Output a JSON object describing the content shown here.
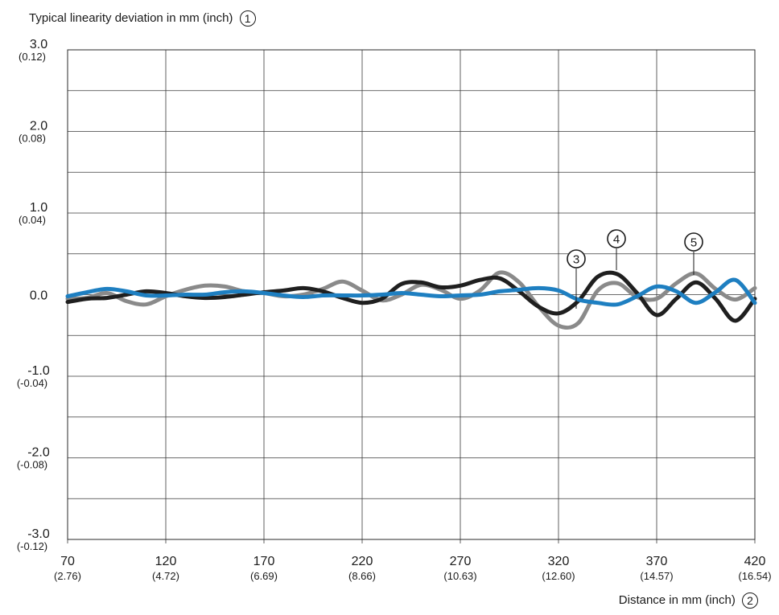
{
  "chart_data": {
    "type": "line",
    "ylabel": "Typical linearity deviation in mm (inch)",
    "ylabel_marker": "1",
    "xlabel": "Distance in mm (inch)",
    "xlabel_marker": "2",
    "xlim": [
      70,
      420
    ],
    "ylim": [
      -3.0,
      3.0
    ],
    "grid": true,
    "x_ticks": [
      {
        "value": 70,
        "mm": "70",
        "inch": "(2.76)"
      },
      {
        "value": 120,
        "mm": "120",
        "inch": "(4.72)"
      },
      {
        "value": 170,
        "mm": "170",
        "inch": "(6.69)"
      },
      {
        "value": 220,
        "mm": "220",
        "inch": "(8.66)"
      },
      {
        "value": 270,
        "mm": "270",
        "inch": "(10.63)"
      },
      {
        "value": 320,
        "mm": "320",
        "inch": "(12.60)"
      },
      {
        "value": 370,
        "mm": "370",
        "inch": "(14.57)"
      },
      {
        "value": 420,
        "mm": "420",
        "inch": "(16.54)"
      }
    ],
    "y_ticks": [
      {
        "value": 3.0,
        "mm": "3.0",
        "inch": "(0.12)"
      },
      {
        "value": 2.0,
        "mm": "2.0",
        "inch": "(0.08)"
      },
      {
        "value": 1.0,
        "mm": "1.0",
        "inch": "(0.04)"
      },
      {
        "value": 0.0,
        "mm": "0.0",
        "inch": ""
      },
      {
        "value": -1.0,
        "mm": "-1.0",
        "inch": "(-0.04)"
      },
      {
        "value": -2.0,
        "mm": "-2.0",
        "inch": "(-0.08)"
      },
      {
        "value": -3.0,
        "mm": "-3.0",
        "inch": "(-0.12)"
      }
    ],
    "series": [
      {
        "marker": "3",
        "color": "#8a8a8a",
        "x": [
          70,
          80,
          90,
          100,
          110,
          120,
          130,
          140,
          150,
          160,
          170,
          180,
          190,
          200,
          210,
          220,
          230,
          240,
          250,
          260,
          270,
          280,
          290,
          300,
          310,
          320,
          330,
          340,
          350,
          360,
          370,
          380,
          390,
          400,
          410,
          420
        ],
        "y": [
          -0.05,
          -0.04,
          0.02,
          -0.08,
          -0.12,
          -0.02,
          0.06,
          0.11,
          0.1,
          0.04,
          0.02,
          -0.02,
          0.0,
          0.07,
          0.16,
          0.05,
          -0.07,
          0.0,
          0.12,
          0.06,
          -0.05,
          0.05,
          0.27,
          0.15,
          -0.15,
          -0.38,
          -0.35,
          0.05,
          0.14,
          -0.03,
          -0.05,
          0.14,
          0.26,
          0.07,
          -0.06,
          0.08
        ]
      },
      {
        "marker": "4",
        "color": "#1f1f1f",
        "x": [
          70,
          80,
          90,
          100,
          110,
          120,
          130,
          140,
          150,
          160,
          170,
          180,
          190,
          200,
          210,
          220,
          230,
          240,
          250,
          260,
          270,
          280,
          290,
          300,
          310,
          320,
          330,
          340,
          350,
          360,
          370,
          380,
          390,
          400,
          410,
          420
        ],
        "y": [
          -0.09,
          -0.05,
          -0.04,
          0.0,
          0.04,
          0.02,
          -0.02,
          -0.04,
          -0.03,
          0.0,
          0.03,
          0.05,
          0.08,
          0.04,
          -0.04,
          -0.1,
          -0.05,
          0.13,
          0.15,
          0.09,
          0.11,
          0.18,
          0.2,
          0.04,
          -0.15,
          -0.23,
          -0.08,
          0.22,
          0.25,
          0.02,
          -0.25,
          -0.05,
          0.15,
          -0.05,
          -0.32,
          -0.05
        ]
      },
      {
        "marker": "5",
        "color": "#1e7fc1",
        "x": [
          70,
          80,
          90,
          100,
          110,
          120,
          130,
          140,
          150,
          160,
          170,
          180,
          190,
          200,
          210,
          220,
          230,
          240,
          250,
          260,
          270,
          280,
          290,
          300,
          310,
          320,
          330,
          340,
          350,
          360,
          370,
          380,
          390,
          400,
          410,
          420
        ],
        "y": [
          -0.02,
          0.03,
          0.07,
          0.04,
          -0.01,
          -0.01,
          0.0,
          0.0,
          0.03,
          0.04,
          0.02,
          -0.01,
          -0.03,
          -0.01,
          -0.01,
          -0.01,
          0.0,
          0.02,
          0.0,
          -0.02,
          -0.01,
          0.0,
          0.04,
          0.06,
          0.08,
          0.05,
          -0.06,
          -0.1,
          -0.12,
          -0.02,
          0.1,
          0.04,
          -0.1,
          0.03,
          0.18,
          -0.1
        ]
      }
    ]
  }
}
